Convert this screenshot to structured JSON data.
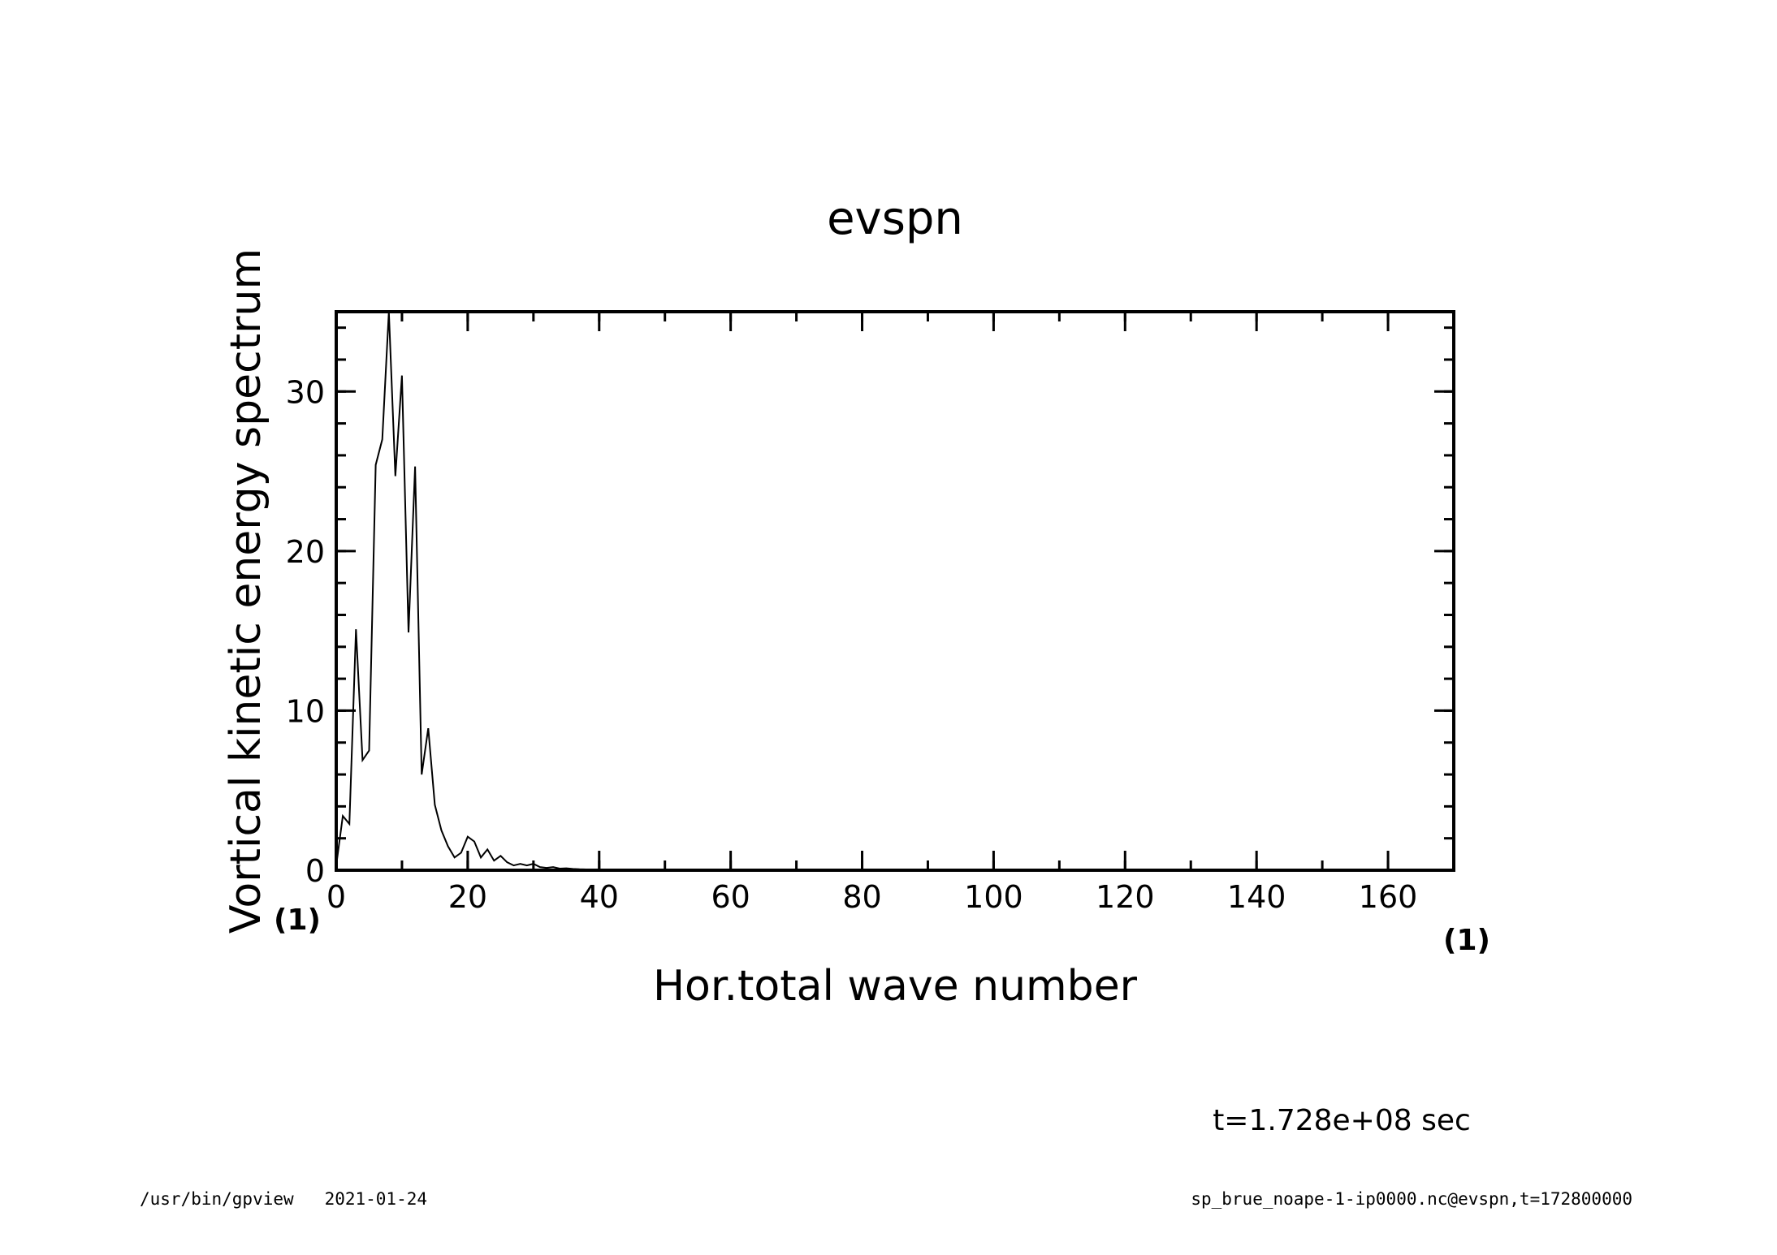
{
  "chart_data": {
    "type": "line",
    "title": "evspn",
    "xlabel": "Hor.total wave number",
    "ylabel": "Vortical kinetic energy spectrum",
    "x_unit": "(1)",
    "y_unit": "(1)",
    "xlim": [
      0,
      170
    ],
    "ylim": [
      0,
      35
    ],
    "x_ticks": [
      0,
      20,
      40,
      60,
      80,
      100,
      120,
      140,
      160
    ],
    "y_ticks": [
      0,
      10,
      20,
      30
    ],
    "x_tick_labels": [
      "0",
      "20",
      "40",
      "60",
      "80",
      "100",
      "120",
      "140",
      "160"
    ],
    "y_tick_labels": [
      "0",
      "10",
      "20",
      "30"
    ],
    "grid": false,
    "series": [
      {
        "x": [
          0,
          1,
          2,
          3,
          4,
          5,
          6,
          7,
          8,
          9,
          10,
          11,
          12,
          13,
          14,
          15,
          16,
          17,
          18,
          19,
          20,
          21,
          22,
          23,
          24,
          25,
          26,
          27,
          28,
          29,
          30,
          31,
          32,
          33,
          34,
          35,
          36,
          37,
          38,
          39,
          40,
          45,
          50,
          60,
          80,
          100,
          120,
          140,
          160,
          170
        ],
        "y": [
          0.3,
          3.4,
          2.9,
          15.1,
          6.9,
          7.5,
          25.4,
          27.0,
          35.0,
          24.7,
          31.0,
          14.9,
          25.3,
          6.0,
          8.9,
          4.1,
          2.5,
          1.5,
          0.8,
          1.1,
          2.1,
          1.8,
          0.8,
          1.3,
          0.6,
          0.9,
          0.5,
          0.3,
          0.4,
          0.3,
          0.4,
          0.2,
          0.15,
          0.2,
          0.1,
          0.12,
          0.08,
          0.06,
          0.05,
          0.04,
          0.03,
          0.02,
          0.01,
          0.01,
          0,
          0,
          0,
          0,
          0,
          0
        ]
      }
    ]
  },
  "annotations": {
    "time": "t=1.728e+08 sec",
    "footer_left": "/usr/bin/gpview   2021-01-24",
    "footer_right": "sp_brue_noape-1-ip0000.nc@evspn,t=172800000"
  }
}
